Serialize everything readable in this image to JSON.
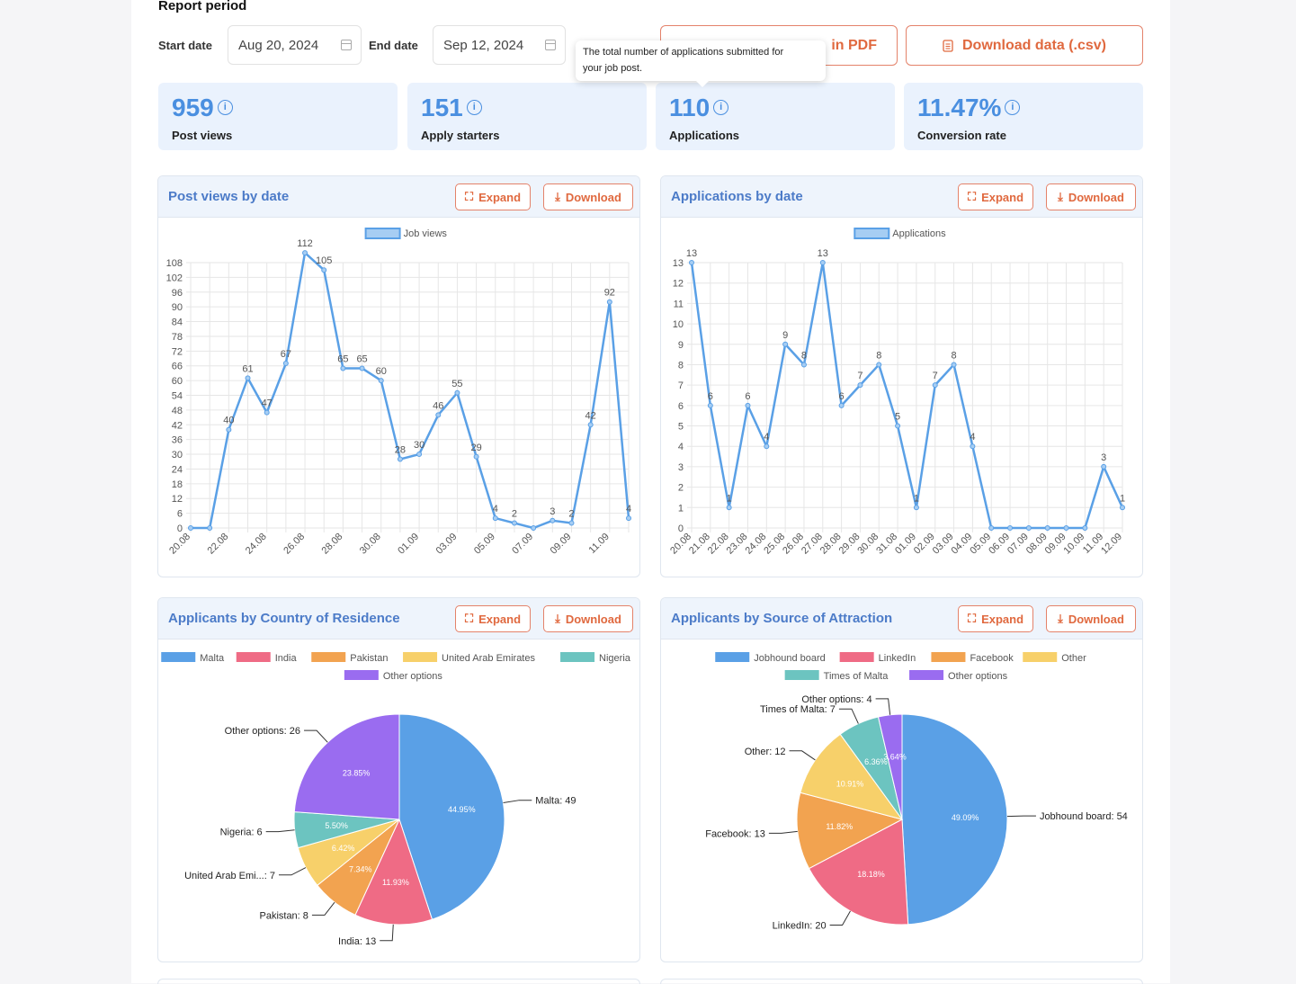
{
  "report": {
    "title": "Report period",
    "start_label": "Start date",
    "start_value": "Aug 20, 2024",
    "end_label": "End date",
    "end_value": "Sep 12, 2024",
    "pdf_label": "in PDF",
    "csv_label": "Download data (.csv)",
    "tooltip_line1": "The total number of applications submitted for",
    "tooltip_line2": "your job post."
  },
  "stats": [
    {
      "value": "959",
      "label": "Post views"
    },
    {
      "value": "151",
      "label": "Apply starters"
    },
    {
      "value": "110",
      "label": "Applications"
    },
    {
      "value": "11.47%",
      "label": "Conversion rate"
    }
  ],
  "buttons": {
    "expand": "Expand",
    "download": "Download"
  },
  "cards": {
    "views": "Post views by date",
    "apps": "Applications by date",
    "country": "Applicants by Country of Residence",
    "source": "Applicants by Source of Attraction"
  },
  "colors": {
    "blue": "#5aa0e6",
    "accent": "#e0693f",
    "title": "#4c7bc8"
  },
  "icons": {
    "calendar": "calendar-icon",
    "info": "info-icon",
    "expand": "expand-icon",
    "download": "download-icon",
    "file": "file-icon"
  },
  "chart_data": [
    {
      "type": "line",
      "legend": "Job views",
      "categories": [
        "20.08",
        "21.08",
        "22.08",
        "23.08",
        "24.08",
        "25.08",
        "26.08",
        "27.08",
        "28.08",
        "29.08",
        "30.08",
        "31.08",
        "01.09",
        "02.09",
        "03.09",
        "04.09",
        "05.09",
        "06.09",
        "07.09",
        "08.09",
        "09.09",
        "10.09",
        "11.09",
        "12.09"
      ],
      "tick_labels": [
        "20.08",
        "22.08",
        "24.08",
        "26.08",
        "28.08",
        "30.08",
        "01.09",
        "03.09",
        "05.09",
        "07.09",
        "09.09",
        "11.09"
      ],
      "values": [
        0,
        0,
        40,
        61,
        47,
        67,
        112,
        105,
        65,
        65,
        60,
        28,
        30,
        46,
        55,
        29,
        4,
        2,
        0,
        3,
        2,
        42,
        92,
        4
      ],
      "data_labels": [
        "",
        "",
        "40",
        "61",
        "47",
        "67",
        "112",
        "105",
        "65",
        "65",
        "60",
        "28",
        "30",
        "46",
        "55",
        "29",
        "4",
        "2",
        "",
        "3",
        "2",
        "42",
        "92",
        "4"
      ],
      "ylim": [
        0,
        108
      ],
      "yticks": [
        0,
        6,
        12,
        18,
        24,
        30,
        36,
        42,
        48,
        54,
        60,
        66,
        72,
        78,
        84,
        90,
        96,
        102,
        108
      ]
    },
    {
      "type": "line",
      "legend": "Applications",
      "categories": [
        "20.08",
        "21.08",
        "22.08",
        "23.08",
        "24.08",
        "25.08",
        "26.08",
        "27.08",
        "28.08",
        "29.08",
        "30.08",
        "31.08",
        "01.09",
        "02.09",
        "03.09",
        "04.09",
        "05.09",
        "06.09",
        "07.09",
        "08.09",
        "09.09",
        "10.09",
        "11.09",
        "12.09"
      ],
      "values": [
        13,
        6,
        1,
        6,
        4,
        9,
        8,
        13,
        6,
        7,
        8,
        5,
        1,
        7,
        8,
        4,
        0,
        0,
        0,
        0,
        0,
        0,
        3,
        1
      ],
      "data_labels": [
        "13",
        "6",
        "1",
        "6",
        "4",
        "9",
        "8",
        "13",
        "6",
        "7",
        "8",
        "5",
        "1",
        "7",
        "8",
        "4",
        "",
        "",
        "",
        "",
        "",
        "",
        "3",
        "1"
      ],
      "ylim": [
        0,
        13
      ],
      "yticks": [
        0,
        1,
        2,
        3,
        4,
        5,
        6,
        7,
        8,
        9,
        10,
        11,
        12,
        13
      ]
    },
    {
      "type": "pie",
      "legend": [
        "Malta",
        "India",
        "Pakistan",
        "United Arab Emirates",
        "Nigeria",
        "Other options"
      ],
      "labels": [
        "Malta: 49",
        "India: 13",
        "Pakistan: 8",
        "United Arab Emi...: 7",
        "Nigeria: 6",
        "Other options: 26"
      ],
      "values": [
        49,
        13,
        8,
        7,
        6,
        26
      ],
      "percents": [
        "44.95%",
        "11.93%",
        "7.34%",
        "6.42%",
        "5.50%",
        "23.85%"
      ],
      "colors": [
        "#5aa0e6",
        "#ef6b85",
        "#f2a350",
        "#f7d06a",
        "#6cc4c0",
        "#9a6cf0"
      ]
    },
    {
      "type": "pie",
      "legend": [
        "Jobhound board",
        "LinkedIn",
        "Facebook",
        "Other",
        "Times of Malta",
        "Other options"
      ],
      "labels": [
        "Jobhound board: 54",
        "LinkedIn: 20",
        "Facebook: 13",
        "Other: 12",
        "Times of Malta: 7",
        "Other options: 4"
      ],
      "values": [
        54,
        20,
        13,
        12,
        7,
        4
      ],
      "percents": [
        "49.09%",
        "18.18%",
        "11.82%",
        "10.91%",
        "6.36%",
        "3.64%"
      ],
      "colors": [
        "#5aa0e6",
        "#ef6b85",
        "#f2a350",
        "#f7d06a",
        "#6cc4c0",
        "#9a6cf0"
      ]
    }
  ]
}
